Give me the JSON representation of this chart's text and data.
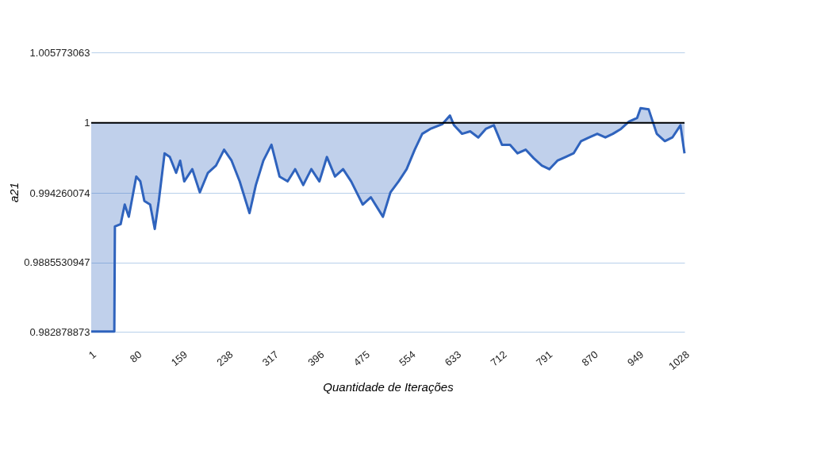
{
  "chart_data": {
    "type": "line",
    "xlabel": "Quantidade de Iterações",
    "ylabel": "a21",
    "xlim": [
      1,
      1028
    ],
    "xticks": [
      1,
      80,
      159,
      238,
      317,
      396,
      475,
      554,
      633,
      712,
      791,
      870,
      949,
      1028
    ],
    "ylim": [
      0.982878873,
      1.005773063
    ],
    "yticks": [
      0.982878873,
      0.9885530947,
      0.994260074,
      1,
      1.005773063
    ],
    "grid": "y",
    "ref_lines": [
      {
        "axis": "y",
        "value": 1,
        "color": "#000000"
      }
    ],
    "series": [
      {
        "color": "#2f63bd",
        "x": [
          1,
          41,
          42,
          52,
          59,
          66,
          79,
          86,
          93,
          103,
          111,
          118,
          128,
          137,
          148,
          155,
          162,
          176,
          189,
          203,
          217,
          231,
          244,
          258,
          275,
          286,
          299,
          313,
          327,
          341,
          354,
          368,
          382,
          396,
          409,
          423,
          437,
          451,
          471,
          485,
          506,
          519,
          533,
          547,
          561,
          574,
          588,
          609,
          622,
          629,
          643,
          657,
          671,
          684,
          698,
          712,
          726,
          739,
          753,
          767,
          781,
          794,
          808,
          822,
          836,
          849,
          863,
          877,
          891,
          904,
          918,
          932,
          946,
          952,
          966,
          980,
          994,
          1007,
          1021,
          1028
        ],
        "values": [
          0.9829,
          0.9829,
          0.9915,
          0.9917,
          0.9933,
          0.9923,
          0.9956,
          0.9952,
          0.9936,
          0.9933,
          0.9913,
          0.9936,
          0.9975,
          0.9972,
          0.9959,
          0.9969,
          0.9952,
          0.9962,
          0.9943,
          0.9959,
          0.9965,
          0.9978,
          0.9969,
          0.9952,
          0.9926,
          0.9949,
          0.9969,
          0.9982,
          0.9956,
          0.9952,
          0.9962,
          0.9949,
          0.9962,
          0.9952,
          0.9972,
          0.9956,
          0.9962,
          0.9952,
          0.9933,
          0.9939,
          0.9923,
          0.9943,
          0.9952,
          0.9962,
          0.9978,
          0.9991,
          0.9995,
          0.9999,
          1.0006,
          0.9998,
          0.9991,
          0.9993,
          0.9988,
          0.9995,
          0.9998,
          0.9982,
          0.9982,
          0.9975,
          0.9978,
          0.9971,
          0.9965,
          0.9962,
          0.9969,
          0.9972,
          0.9975,
          0.9985,
          0.9988,
          0.9991,
          0.9988,
          0.9991,
          0.9995,
          1.0001,
          1.0004,
          1.0012,
          1.0011,
          0.9991,
          0.9985,
          0.9988,
          0.9998,
          0.9975
        ],
        "lower": [
          0.9829,
          0.9829,
          0.9915,
          0.9917,
          0.9933,
          0.9923,
          0.9956,
          0.9952,
          0.9936,
          0.9933,
          0.9913,
          0.9936,
          0.9975,
          0.9972,
          0.9959,
          0.9969,
          0.9952,
          0.9962,
          0.9943,
          0.9959,
          0.9965,
          0.9978,
          0.9969,
          0.9952,
          0.9926,
          0.9949,
          0.9969,
          0.9982,
          0.9956,
          0.9952,
          0.9962,
          0.9949,
          0.9962,
          0.9952,
          0.9972,
          0.9956,
          0.9962,
          0.9952,
          0.9933,
          0.9939,
          0.9923,
          0.9943,
          0.9952,
          0.9962,
          0.9978,
          0.9991,
          0.9995,
          0.9999,
          1.0006,
          0.9998,
          0.9991,
          0.9993,
          0.9988,
          0.9995,
          0.9998,
          0.9982,
          0.9982,
          0.9975,
          0.9978,
          0.9971,
          0.9965,
          0.9962,
          0.9969,
          0.9972,
          0.9975,
          0.9985,
          0.9988,
          0.9991,
          0.9988,
          0.9991,
          0.9995,
          1.0001,
          1.0004,
          1.0012,
          1.0011,
          0.9991,
          0.9985,
          0.9988,
          0.9998,
          0.9975
        ],
        "upper": [
          1,
          1,
          1,
          1,
          1,
          1,
          1,
          1,
          1,
          1,
          1,
          1,
          1,
          1,
          1,
          1,
          1,
          1,
          1,
          1,
          1,
          1,
          1,
          1,
          1,
          1,
          1,
          1,
          1,
          1,
          1,
          1,
          1,
          1,
          1,
          1,
          1,
          1,
          1,
          1,
          1,
          1,
          1,
          1,
          1,
          1,
          1,
          1,
          1,
          1,
          1,
          1,
          1,
          1,
          1,
          1,
          1,
          1,
          1,
          1,
          1,
          1,
          1,
          1,
          1,
          1,
          1,
          1,
          1,
          1,
          1,
          1,
          1,
          1,
          1,
          1,
          1,
          1,
          1,
          1
        ]
      }
    ]
  }
}
